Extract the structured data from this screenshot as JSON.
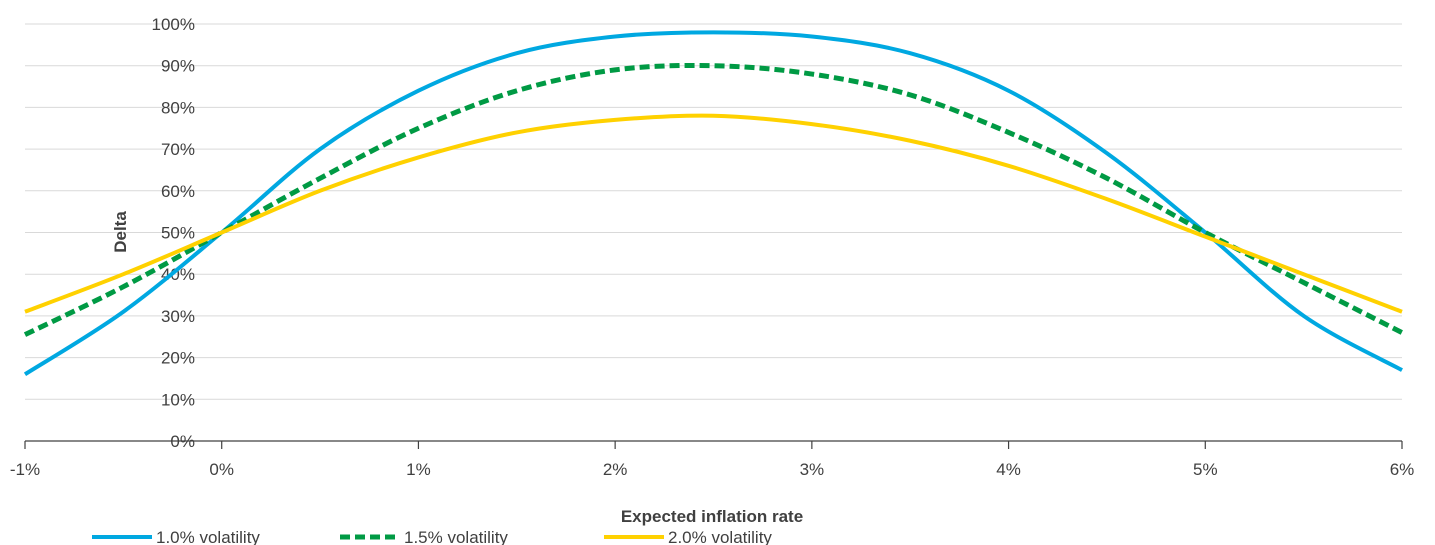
{
  "chart_data": {
    "type": "line",
    "xlabel": "Expected inflation rate",
    "ylabel": "Delta",
    "xlim": [
      -1,
      6
    ],
    "ylim": [
      0,
      100
    ],
    "x_ticks": [
      -1,
      0,
      1,
      2,
      3,
      4,
      5,
      6
    ],
    "x_tick_labels": [
      "-1%",
      "0%",
      "1%",
      "2%",
      "3%",
      "4%",
      "5%",
      "6%"
    ],
    "y_ticks": [
      0,
      10,
      20,
      30,
      40,
      50,
      60,
      70,
      80,
      90,
      100
    ],
    "y_tick_labels": [
      "0%",
      "10%",
      "20%",
      "30%",
      "40%",
      "50%",
      "60%",
      "70%",
      "80%",
      "90%",
      "100%"
    ],
    "grid": "horizontal",
    "legend_position": "bottom",
    "x": [
      -1,
      -0.5,
      0,
      0.5,
      1,
      1.5,
      2,
      2.5,
      3,
      3.5,
      4,
      4.5,
      5,
      5.5,
      6
    ],
    "series": [
      {
        "name": "1.0% volatility",
        "color": "#00A8E1",
        "style": "solid",
        "values": [
          16,
          31,
          50,
          70,
          84,
          93,
          97,
          98,
          97,
          93,
          84,
          69,
          50,
          30,
          17
        ]
      },
      {
        "name": "1.5% volatility",
        "color": "#009A44",
        "style": "dashed",
        "values": [
          25.5,
          37,
          50,
          63,
          75,
          84,
          89,
          90,
          88,
          83,
          74,
          63,
          50,
          38,
          26
        ]
      },
      {
        "name": "2.0% volatility",
        "color": "#FFD100",
        "style": "solid",
        "values": [
          31,
          40,
          50,
          60,
          68,
          74,
          77,
          78,
          76,
          72,
          66,
          58,
          49,
          40,
          31
        ]
      }
    ]
  },
  "axis_color": "#404040",
  "grid_color": "#d9d9d9"
}
